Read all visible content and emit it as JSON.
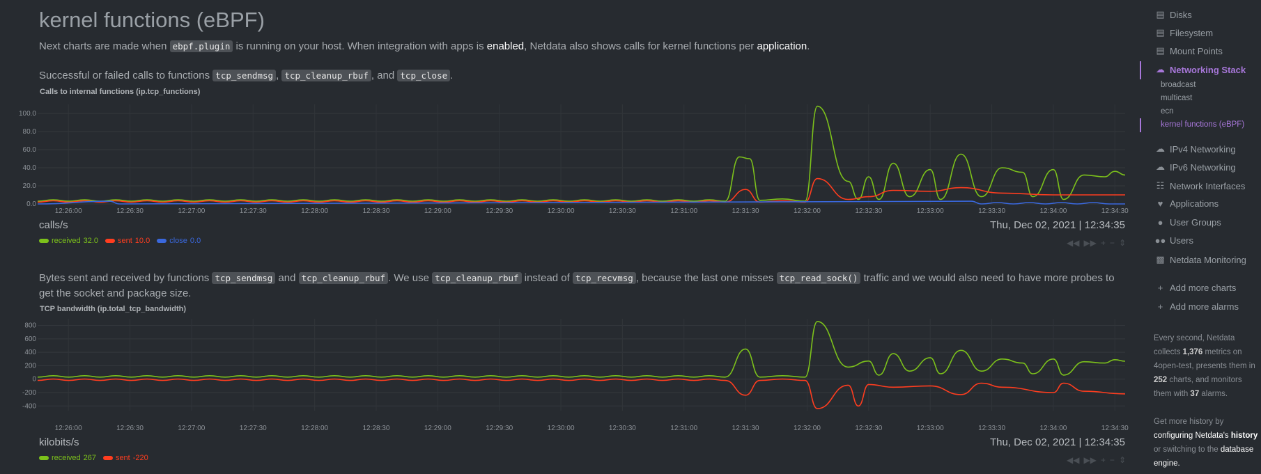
{
  "section": {
    "title": "kernel functions (eBPF)",
    "intro": {
      "t1": "Next charts are made when ",
      "code1": "ebpf.plugin",
      "t2": " is running on your host. When integration with apps is ",
      "link1": "enabled",
      "t3": ", Netdata also shows calls for kernel functions per ",
      "link2": "application",
      "t4": "."
    }
  },
  "chart1": {
    "desc": {
      "t1": "Successful or failed calls to functions ",
      "c1": "tcp_sendmsg",
      "t2": ", ",
      "c2": "tcp_cleanup_rbuf",
      "t3": ", and ",
      "c3": "tcp_close",
      "t4": "."
    },
    "title": "Calls to internal functions (ip.tcp_functions)",
    "units": "calls/s",
    "datetime": "Thu, Dec 02, 2021 | 12:34:35",
    "legend": [
      {
        "name": "received",
        "value": "32.0",
        "color": "#7cc11b"
      },
      {
        "name": "sent",
        "value": "10.0",
        "color": "#ff3d1f"
      },
      {
        "name": "close",
        "value": "0.0",
        "color": "#3a68dd"
      }
    ]
  },
  "chart2": {
    "desc": {
      "t1": "Bytes sent and received by functions ",
      "c1": "tcp_sendmsg",
      "t2": " and ",
      "c2": "tcp_cleanup_rbuf",
      "t3": ". We use ",
      "c3": "tcp_cleanup_rbuf",
      "t4": " instead of ",
      "c4": "tcp_recvmsg",
      "t5": ", because the last one misses ",
      "c5": "tcp_read_sock()",
      "t6": " traffic and we would also need to have more probes to get the socket and package size."
    },
    "title": "TCP bandwidth (ip.total_tcp_bandwidth)",
    "units": "kilobits/s",
    "datetime": "Thu, Dec 02, 2021 | 12:34:35",
    "legend": [
      {
        "name": "received",
        "value": "267",
        "color": "#7cc11b"
      },
      {
        "name": "sent",
        "value": "-220",
        "color": "#ff3d1f"
      }
    ]
  },
  "chart_controls": [
    "rewind-icon",
    "fast-forward-icon",
    "zoom-in-icon",
    "zoom-out-icon",
    "resize-icon"
  ],
  "chart_data": [
    {
      "type": "line",
      "title": "Calls to internal functions (ip.tcp_functions)",
      "ylabel": "calls/s",
      "ylim": [
        0,
        110
      ],
      "y_ticks": [
        "100.0",
        "80.0",
        "60.0",
        "40.0",
        "20.0",
        "0.0"
      ],
      "x_ticks": [
        "12:26:00",
        "12:26:30",
        "12:27:00",
        "12:27:30",
        "12:28:00",
        "12:28:30",
        "12:29:00",
        "12:29:30",
        "12:30:00",
        "12:30:30",
        "12:31:00",
        "12:31:30",
        "12:32:00",
        "12:32:30",
        "12:33:00",
        "12:33:30",
        "12:34:00",
        "12:34:30"
      ],
      "series": [
        {
          "name": "received",
          "color": "#7cc11b",
          "points": [
            [
              "12:25:45",
              3
            ],
            [
              "12:31:20",
              3
            ],
            [
              "12:31:27",
              52
            ],
            [
              "12:31:32",
              50
            ],
            [
              "12:31:37",
              4
            ],
            [
              "12:31:59",
              3
            ],
            [
              "12:32:05",
              108
            ],
            [
              "12:32:20",
              25
            ],
            [
              "12:32:25",
              5
            ],
            [
              "12:32:30",
              30
            ],
            [
              "12:32:35",
              5
            ],
            [
              "12:32:42",
              45
            ],
            [
              "12:32:50",
              8
            ],
            [
              "12:33:00",
              38
            ],
            [
              "12:33:05",
              5
            ],
            [
              "12:33:15",
              55
            ],
            [
              "12:33:25",
              8
            ],
            [
              "12:33:35",
              40
            ],
            [
              "12:33:45",
              35
            ],
            [
              "12:33:50",
              8
            ],
            [
              "12:34:00",
              38
            ],
            [
              "12:34:05",
              5
            ],
            [
              "12:34:15",
              32
            ],
            [
              "12:34:25",
              30
            ],
            [
              "12:34:30",
              36
            ],
            [
              "12:34:35",
              32
            ]
          ]
        },
        {
          "name": "sent",
          "color": "#ff3d1f",
          "points": [
            [
              "12:25:45",
              2
            ],
            [
              "12:31:20",
              2
            ],
            [
              "12:31:30",
              16
            ],
            [
              "12:31:37",
              2
            ],
            [
              "12:31:59",
              2
            ],
            [
              "12:32:05",
              28
            ],
            [
              "12:32:20",
              5
            ],
            [
              "12:32:30",
              8
            ],
            [
              "12:32:42",
              15
            ],
            [
              "12:33:00",
              14
            ],
            [
              "12:33:15",
              18
            ],
            [
              "12:33:35",
              12
            ],
            [
              "12:34:00",
              10
            ],
            [
              "12:34:15",
              10
            ],
            [
              "12:34:35",
              10
            ]
          ]
        },
        {
          "name": "close",
          "color": "#3a68dd",
          "points": [
            [
              "12:25:45",
              0
            ],
            [
              "12:26:20",
              3
            ],
            [
              "12:26:25",
              0
            ],
            [
              "12:33:20",
              3
            ],
            [
              "12:33:25",
              0
            ],
            [
              "12:34:35",
              0
            ]
          ]
        }
      ]
    },
    {
      "type": "line",
      "title": "TCP bandwidth (ip.total_tcp_bandwidth)",
      "ylabel": "kilobits/s",
      "ylim": [
        -470,
        900
      ],
      "y_ticks": [
        "800",
        "600",
        "400",
        "200",
        "0",
        "-200",
        "-400"
      ],
      "x_ticks": [
        "12:26:00",
        "12:26:30",
        "12:27:00",
        "12:27:30",
        "12:28:00",
        "12:28:30",
        "12:29:00",
        "12:29:30",
        "12:30:00",
        "12:30:30",
        "12:31:00",
        "12:31:30",
        "12:32:00",
        "12:32:30",
        "12:33:00",
        "12:33:30",
        "12:34:00",
        "12:34:30"
      ],
      "series": [
        {
          "name": "received",
          "color": "#7cc11b",
          "points": [
            [
              "12:25:45",
              30
            ],
            [
              "12:31:20",
              30
            ],
            [
              "12:31:30",
              450
            ],
            [
              "12:31:37",
              30
            ],
            [
              "12:31:59",
              30
            ],
            [
              "12:32:05",
              860
            ],
            [
              "12:32:20",
              180
            ],
            [
              "12:32:30",
              270
            ],
            [
              "12:32:35",
              60
            ],
            [
              "12:32:42",
              380
            ],
            [
              "12:32:50",
              120
            ],
            [
              "12:33:00",
              320
            ],
            [
              "12:33:05",
              80
            ],
            [
              "12:33:15",
              430
            ],
            [
              "12:33:25",
              120
            ],
            [
              "12:33:35",
              300
            ],
            [
              "12:33:45",
              240
            ],
            [
              "12:33:50",
              80
            ],
            [
              "12:34:00",
              300
            ],
            [
              "12:34:05",
              60
            ],
            [
              "12:34:15",
              260
            ],
            [
              "12:34:25",
              240
            ],
            [
              "12:34:30",
              290
            ],
            [
              "12:34:35",
              267
            ]
          ]
        },
        {
          "name": "sent",
          "color": "#ff3d1f",
          "points": [
            [
              "12:25:45",
              -20
            ],
            [
              "12:31:20",
              -20
            ],
            [
              "12:31:30",
              -240
            ],
            [
              "12:31:37",
              -20
            ],
            [
              "12:31:59",
              -20
            ],
            [
              "12:32:05",
              -440
            ],
            [
              "12:32:20",
              -90
            ],
            [
              "12:32:25",
              -400
            ],
            [
              "12:32:30",
              -80
            ],
            [
              "12:32:42",
              -120
            ],
            [
              "12:33:00",
              -100
            ],
            [
              "12:33:15",
              -230
            ],
            [
              "12:33:25",
              -60
            ],
            [
              "12:33:35",
              -120
            ],
            [
              "12:34:00",
              -200
            ],
            [
              "12:34:05",
              -60
            ],
            [
              "12:34:15",
              -180
            ],
            [
              "12:34:35",
              -220
            ]
          ]
        }
      ]
    }
  ],
  "sidebar": {
    "items": [
      {
        "label": "Disks",
        "icon": "hdd-icon"
      },
      {
        "label": "Filesystem",
        "icon": "hdd-icon"
      },
      {
        "label": "Mount Points",
        "icon": "hdd-icon"
      },
      {
        "label": "Networking Stack",
        "icon": "cloud-icon"
      }
    ],
    "subitems": [
      "broadcast",
      "multicast",
      "ecn",
      "kernel functions (eBPF)"
    ],
    "items2": [
      {
        "label": "IPv4 Networking",
        "icon": "cloud-icon"
      },
      {
        "label": "IPv6 Networking",
        "icon": "cloud-icon"
      },
      {
        "label": "Network Interfaces",
        "icon": "sitemap-icon"
      },
      {
        "label": "Applications",
        "icon": "heartbeat-icon"
      },
      {
        "label": "User Groups",
        "icon": "user-icon"
      },
      {
        "label": "Users",
        "icon": "users-icon"
      },
      {
        "label": "Netdata Monitoring",
        "icon": "bar-chart-icon"
      }
    ],
    "actions": [
      {
        "label": "Add more charts",
        "icon": "plus-icon"
      },
      {
        "label": "Add more alarms",
        "icon": "plus-icon"
      }
    ],
    "info": {
      "t1": "Every second, Netdata collects ",
      "metrics": "1,376",
      "t2": " metrics on 4open-test, presents them in ",
      "charts": "252",
      "t3": " charts, and monitors them with ",
      "alarms": "37",
      "t4": " alarms."
    },
    "history": {
      "t1": "Get more history by ",
      "link1": "configuring Netdata's",
      "link1b": "history",
      "t2": " or switching to the ",
      "link2": "database engine."
    }
  }
}
